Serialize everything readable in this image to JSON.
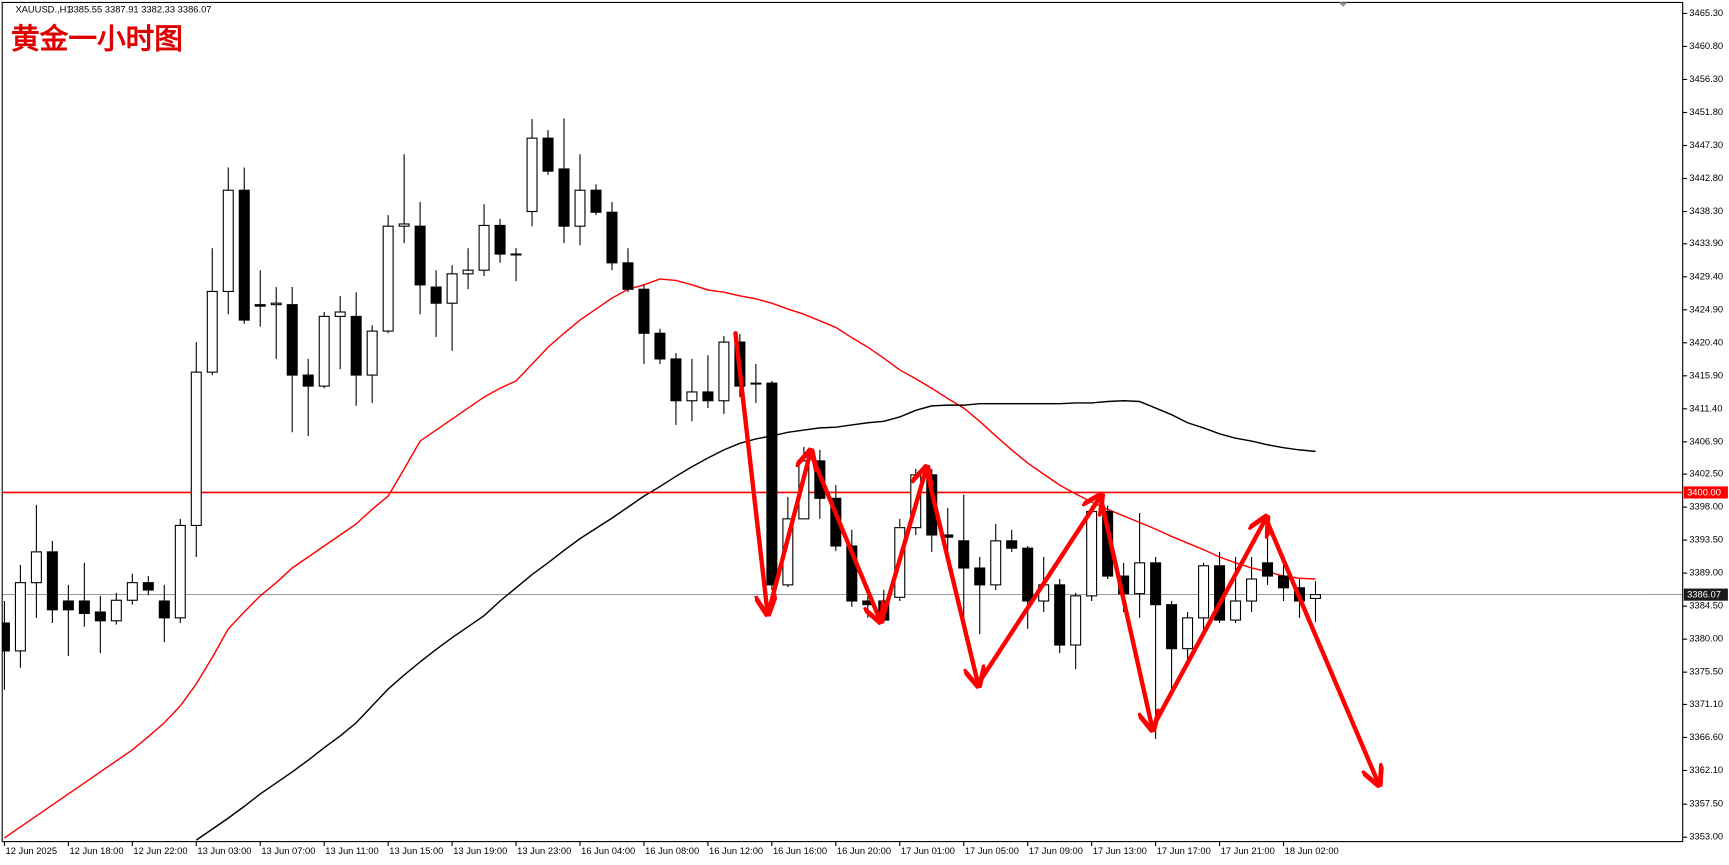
{
  "chart_data": {
    "type": "candlestick",
    "symbol": "XAUUSD.,H1",
    "ohlc_text": "3385.55 3387.91 3382.33 3386.07",
    "title": "黄金一小时图",
    "categories": [
      "12 Jun 2025",
      null,
      null,
      null,
      "12 Jun 18:00",
      null,
      null,
      null,
      "12 Jun 22:00",
      null,
      null,
      null,
      "13 Jun 03:00",
      null,
      null,
      null,
      "13 Jun 07:00",
      null,
      null,
      null,
      "13 Jun 11:00",
      null,
      null,
      null,
      "13 Jun 15:00",
      null,
      null,
      null,
      "13 Jun 19:00",
      null,
      null,
      null,
      "13 Jun 23:00",
      null,
      null,
      null,
      "16 Jun 04:00",
      null,
      null,
      null,
      "16 Jun 08:00",
      null,
      null,
      null,
      "16 Jun 12:00",
      null,
      null,
      null,
      "16 Jun 16:00",
      null,
      null,
      null,
      "16 Jun 20:00",
      null,
      null,
      null,
      "17 Jun 01:00",
      null,
      null,
      null,
      "17 Jun 05:00",
      null,
      null,
      null,
      "17 Jun 09:00",
      null,
      null,
      null,
      "17 Jun 13:00",
      null,
      null,
      null,
      "17 Jun 17:00",
      null,
      null,
      null,
      "17 Jun 21:00",
      null,
      null,
      null,
      "18 Jun 02:00",
      null,
      null
    ],
    "open": [
      3382.2,
      3378.4,
      3387.7,
      3391.9,
      3385.2,
      3385.2,
      3383.7,
      3382.5,
      3385.3,
      3387.7,
      3385.2,
      3382.9,
      3395.5,
      3416.4,
      3427.4,
      3441.2,
      3425.6,
      3425.6,
      3425.6,
      3416.0,
      3414.5,
      3424.0,
      3424.0,
      3416.0,
      3422.0,
      3436.3,
      3436.3,
      3428.0,
      3425.8,
      3429.8,
      3430.3,
      3436.4,
      3432.5,
      3438.3,
      3448.3,
      3444.1,
      3436.3,
      3441.2,
      3438.2,
      3431.3,
      3427.7,
      3421.7,
      3418.2,
      3412.5,
      3413.7,
      3412.5,
      3420.5,
      3414.8,
      3414.9,
      3387.4,
      3396.4,
      3404.3,
      3399.2,
      3392.7,
      3385.2,
      3385.2,
      3385.7,
      3395.2,
      3402.4,
      3394.2,
      3393.4,
      3389.7,
      3387.4,
      3393.4,
      3392.4,
      3385.2,
      3387.4,
      3379.2,
      3385.9,
      3397.4,
      3388.6,
      3386.2,
      3390.4,
      3384.7,
      3378.7,
      3382.9,
      3390.0,
      3382.6,
      3385.2,
      3390.4,
      3388.6,
      3387.0,
      3385.55
    ],
    "high": [
      3385.2,
      3390.1,
      3398.3,
      3393.4,
      3387.4,
      3390.4,
      3385.9,
      3386.3,
      3388.9,
      3388.6,
      3387.4,
      3396.4,
      3420.5,
      3433.3,
      3444.3,
      3444.3,
      3430.3,
      3428.0,
      3428.0,
      3418.2,
      3424.6,
      3426.8,
      3427.3,
      3422.8,
      3437.8,
      3446.1,
      3439.6,
      3430.3,
      3431.0,
      3433.3,
      3439.3,
      3437.3,
      3433.3,
      3450.9,
      3449.4,
      3451.0,
      3446.1,
      3442.0,
      3439.6,
      3433.3,
      3428.3,
      3422.3,
      3419.0,
      3418.2,
      3418.7,
      3421.3,
      3421.6,
      3417.5,
      3415.2,
      3399.4,
      3406.2,
      3405.8,
      3401.0,
      3394.9,
      3387.4,
      3386.7,
      3396.4,
      3403.2,
      3403.2,
      3397.9,
      3399.7,
      3391.2,
      3395.7,
      3394.9,
      3392.7,
      3391.2,
      3388.2,
      3386.3,
      3398.2,
      3398.2,
      3390.4,
      3397.2,
      3391.2,
      3385.2,
      3383.7,
      3390.4,
      3391.9,
      3391.2,
      3391.2,
      3395.0,
      3390.1,
      3388.2,
      3387.91
    ],
    "low": [
      3373.1,
      3376.1,
      3382.9,
      3382.2,
      3377.7,
      3381.7,
      3378.1,
      3382.0,
      3384.7,
      3386.0,
      3379.6,
      3382.2,
      3391.2,
      3416.0,
      3424.3,
      3423.0,
      3422.6,
      3418.2,
      3408.2,
      3407.7,
      3414.2,
      3416.8,
      3411.8,
      3412.2,
      3421.7,
      3434.0,
      3424.3,
      3421.2,
      3419.3,
      3427.7,
      3429.5,
      3431.3,
      3428.8,
      3436.3,
      3443.3,
      3434.0,
      3433.7,
      3437.8,
      3430.3,
      3427.3,
      3417.5,
      3417.5,
      3409.2,
      3409.7,
      3411.5,
      3410.7,
      3413.0,
      3412.2,
      3386.7,
      3387.1,
      3396.4,
      3396.4,
      3392.0,
      3384.4,
      3382.9,
      3382.2,
      3385.2,
      3394.2,
      3391.9,
      3391.2,
      3382.2,
      3380.7,
      3386.7,
      3391.9,
      3381.4,
      3383.7,
      3378.1,
      3375.9,
      3385.2,
      3388.2,
      3383.7,
      3382.9,
      3366.4,
      3373.1,
      3376.9,
      3380.7,
      3382.2,
      3382.2,
      3383.7,
      3387.4,
      3385.2,
      3382.9,
      3382.33
    ],
    "close": [
      3378.4,
      3387.7,
      3391.9,
      3384.0,
      3384.0,
      3383.5,
      3382.5,
      3385.3,
      3387.7,
      3386.7,
      3382.9,
      3395.5,
      3416.4,
      3427.4,
      3441.2,
      3423.5,
      3425.4,
      3425.8,
      3416.0,
      3414.5,
      3424.0,
      3424.6,
      3416.0,
      3422.0,
      3436.3,
      3436.6,
      3428.3,
      3425.8,
      3429.8,
      3430.3,
      3436.4,
      3432.5,
      3432.4,
      3448.3,
      3443.8,
      3436.3,
      3441.2,
      3438.2,
      3431.3,
      3427.7,
      3421.7,
      3418.2,
      3412.5,
      3413.7,
      3412.5,
      3420.5,
      3414.5,
      3414.9,
      3387.4,
      3396.4,
      3404.3,
      3399.2,
      3392.7,
      3385.2,
      3384.7,
      3382.6,
      3395.2,
      3402.4,
      3394.2,
      3393.9,
      3389.7,
      3387.4,
      3393.4,
      3392.4,
      3385.2,
      3387.4,
      3379.2,
      3385.9,
      3397.4,
      3388.6,
      3386.2,
      3390.4,
      3384.7,
      3378.7,
      3382.9,
      3390.0,
      3382.6,
      3385.2,
      3388.2,
      3388.6,
      3387.0,
      3385.2,
      3386.07
    ],
    "up_color": "#ffffff",
    "down_color": "#000000",
    "overlays": [
      {
        "color": "#ff0000",
        "values": [
          3352.9,
          3354.4,
          3355.9,
          3357.4,
          3358.9,
          3360.4,
          3361.9,
          3363.4,
          3364.9,
          3366.7,
          3368.6,
          3370.9,
          3373.9,
          3377.5,
          3381.4,
          3383.7,
          3385.9,
          3387.7,
          3389.7,
          3391.2,
          3392.7,
          3394.2,
          3395.7,
          3397.7,
          3399.5,
          3403.2,
          3407.0,
          3408.5,
          3410.0,
          3411.5,
          3413.0,
          3414.2,
          3415.2,
          3417.5,
          3419.8,
          3421.7,
          3423.5,
          3425.0,
          3426.5,
          3427.7,
          3428.3,
          3429.1,
          3428.9,
          3428.3,
          3427.6,
          3427.3,
          3426.8,
          3426.4,
          3425.8,
          3425.0,
          3424.3,
          3423.4,
          3422.5,
          3421.1,
          3419.8,
          3418.3,
          3416.7,
          3415.5,
          3414.2,
          3412.8,
          3411.5,
          3409.7,
          3407.7,
          3405.8,
          3404.0,
          3402.5,
          3401.0,
          3399.8,
          3398.7,
          3397.7,
          3396.8,
          3395.9,
          3395.0,
          3394.0,
          3393.1,
          3392.2,
          3391.2,
          3390.4,
          3389.7,
          3389.2,
          3388.6,
          3388.3,
          3388.2
        ]
      },
      {
        "color": "#000000",
        "values": [
          null,
          null,
          null,
          null,
          null,
          null,
          null,
          null,
          null,
          null,
          null,
          null,
          3352.6,
          3354.1,
          3355.6,
          3357.2,
          3358.9,
          3360.4,
          3361.9,
          3363.5,
          3365.2,
          3366.8,
          3368.6,
          3370.9,
          3373.2,
          3375.1,
          3376.9,
          3378.6,
          3380.2,
          3381.7,
          3383.2,
          3385.2,
          3387.0,
          3388.8,
          3390.4,
          3392.1,
          3393.7,
          3395.1,
          3396.5,
          3398.0,
          3399.5,
          3400.8,
          3402.2,
          3403.5,
          3404.7,
          3405.8,
          3406.7,
          3407.3,
          3407.7,
          3408.2,
          3408.5,
          3408.8,
          3408.9,
          3409.2,
          3409.5,
          3409.7,
          3410.3,
          3411.2,
          3411.8,
          3411.9,
          3411.9,
          3412.1,
          3412.1,
          3412.1,
          3412.1,
          3412.1,
          3412.1,
          3412.2,
          3412.2,
          3412.4,
          3412.5,
          3412.4,
          3411.5,
          3410.6,
          3409.5,
          3408.8,
          3408.0,
          3407.4,
          3407.0,
          3406.5,
          3406.1,
          3405.8,
          3405.6
        ]
      }
    ],
    "hlines": [
      {
        "value": 3400,
        "label": "3400.00",
        "color": "#ff0000"
      },
      {
        "value": 3386.07,
        "label": "3386.07",
        "color": "#1a1a1a"
      }
    ],
    "ylim": [
      3352.4,
      3466.8
    ],
    "yticks": [
      {
        "value": 3465.3,
        "label": "3465.30"
      },
      {
        "value": 3460.8,
        "label": "3460.80"
      },
      {
        "value": 3456.3,
        "label": "3456.30"
      },
      {
        "value": 3451.8,
        "label": "3451.80"
      },
      {
        "value": 3447.3,
        "label": "3447.30"
      },
      {
        "value": 3442.8,
        "label": "3442.80"
      },
      {
        "value": 3438.3,
        "label": "3438.30"
      },
      {
        "value": 3433.9,
        "label": "3433.90"
      },
      {
        "value": 3429.4,
        "label": "3429.40"
      },
      {
        "value": 3424.9,
        "label": "3424.90"
      },
      {
        "value": 3420.4,
        "label": "3420.40"
      },
      {
        "value": 3415.9,
        "label": "3415.90"
      },
      {
        "value": 3411.4,
        "label": "3411.40"
      },
      {
        "value": 3406.9,
        "label": "3406.90"
      },
      {
        "value": 3402.5,
        "label": "3402.50"
      },
      {
        "value": 3398,
        "label": "3398.00"
      },
      {
        "value": 3393.5,
        "label": "3393.50"
      },
      {
        "value": 3389,
        "label": "3389.00"
      },
      {
        "value": 3384.5,
        "label": "3384.50"
      },
      {
        "value": 3380,
        "label": "3380.00"
      },
      {
        "value": 3375.5,
        "label": "3375.50"
      },
      {
        "value": 3371.1,
        "label": "3371.10"
      },
      {
        "value": 3366.6,
        "label": "3366.60"
      },
      {
        "value": 3362.1,
        "label": "3362.10"
      },
      {
        "value": 3357.5,
        "label": "3357.50"
      },
      {
        "value": 3353,
        "label": "3353.00"
      }
    ]
  }
}
